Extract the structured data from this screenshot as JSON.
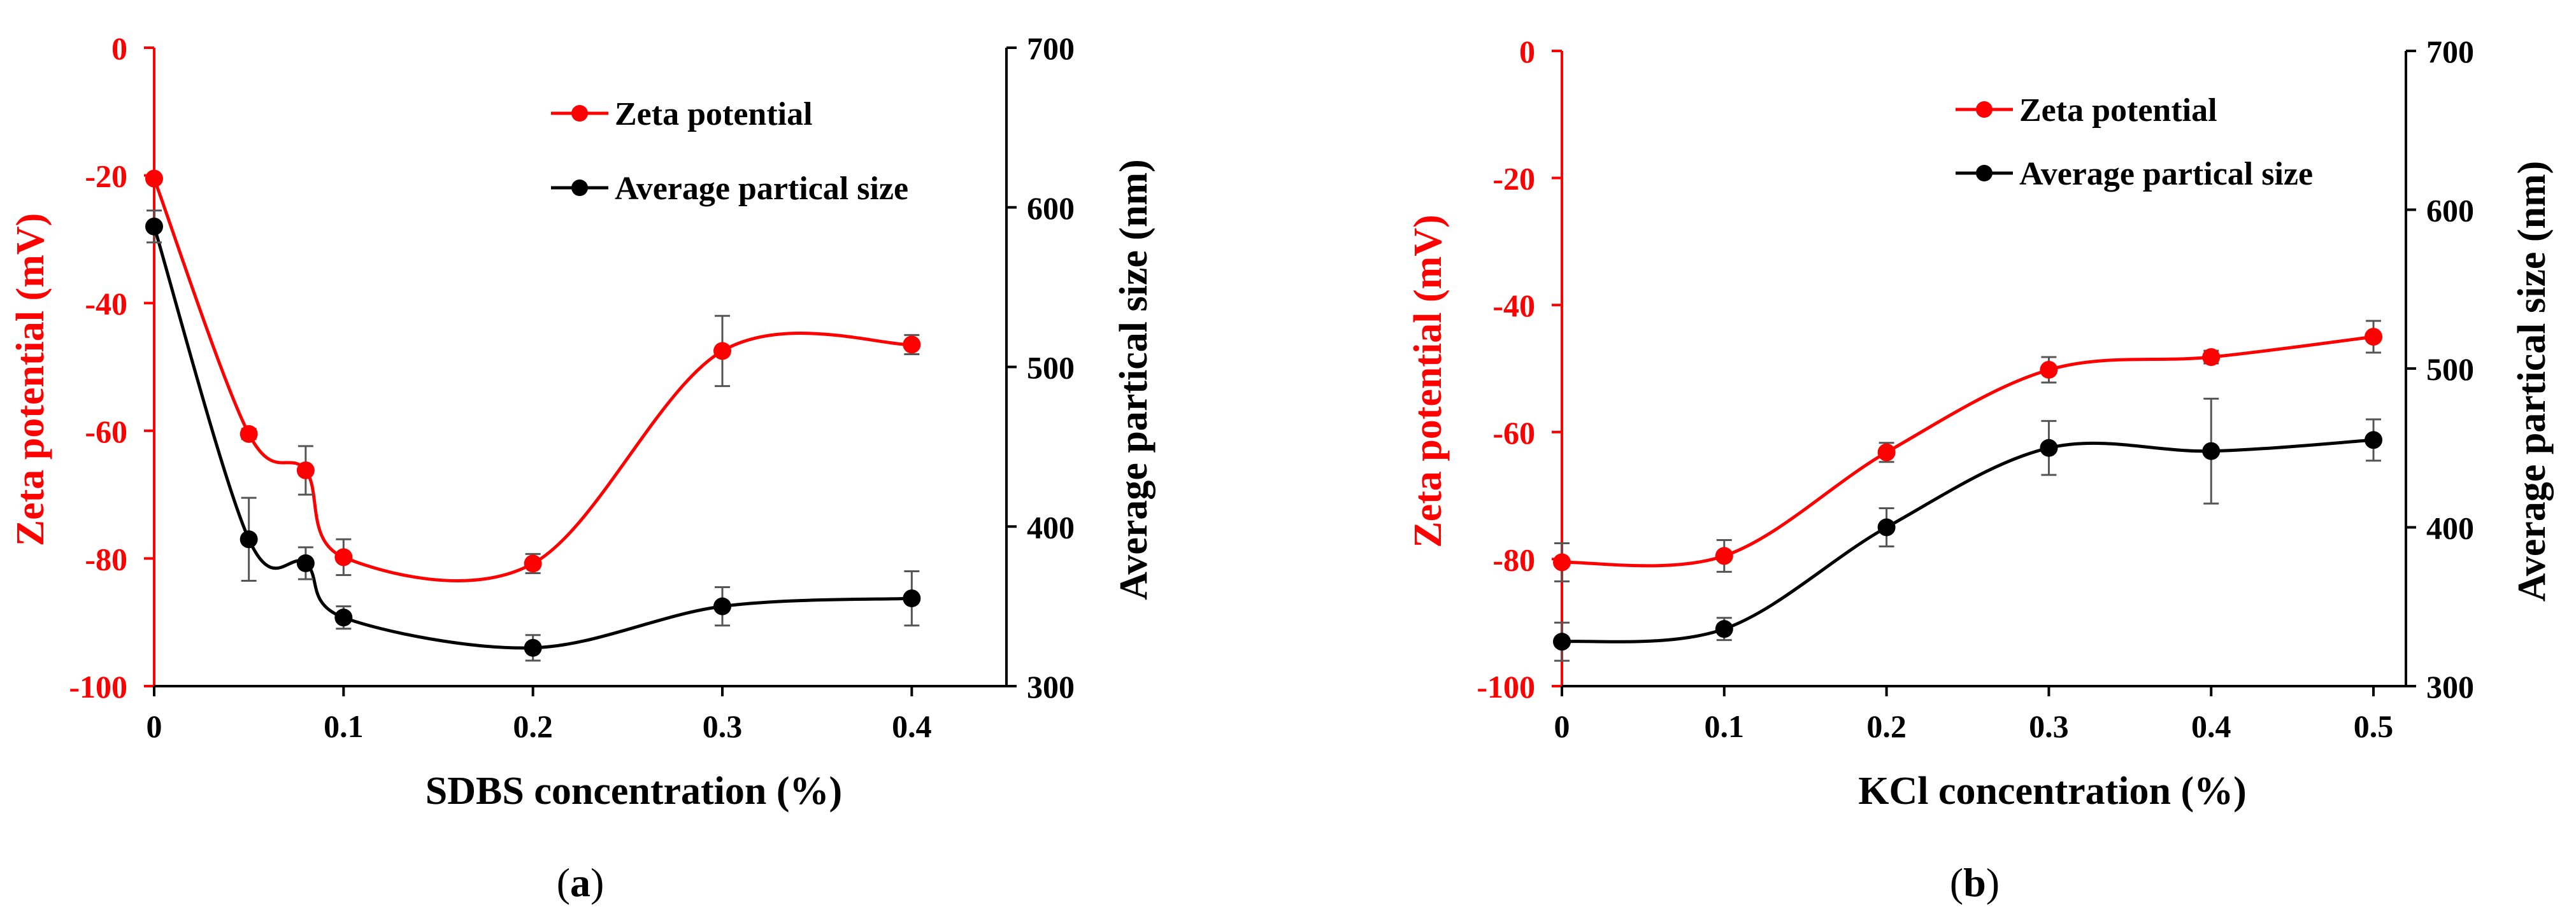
{
  "colors": {
    "zeta": "#ff0000",
    "size": "#000000",
    "axis": "#000000"
  },
  "chart_data": [
    {
      "id": "a",
      "type": "line",
      "panel_label": "(a)",
      "panel_letter": "a",
      "xlabel": "SDBS concentration (%)",
      "ylabel_left": "Zeta potential (mV)",
      "ylabel_right": "Average partical size (nm)",
      "xlim": [
        0,
        0.45
      ],
      "ylim_left": [
        -100,
        0
      ],
      "ylim_right": [
        300,
        700
      ],
      "x_ticks": [
        0,
        0.1,
        0.2,
        0.3,
        0.4
      ],
      "x_tick_labels": [
        "0",
        "0.1",
        "0.2",
        "0.3",
        "0.4"
      ],
      "y_ticks_left": [
        -100,
        -80,
        -60,
        -40,
        -20,
        0
      ],
      "y_tick_labels_left": [
        "-100",
        "-80",
        "-60",
        "-40",
        "-20",
        "0"
      ],
      "y_ticks_right": [
        300,
        400,
        500,
        600,
        700
      ],
      "y_tick_labels_right": [
        "300",
        "400",
        "500",
        "600",
        "700"
      ],
      "legend": [
        "Zeta potential",
        "Average partical size"
      ],
      "legend_position": "top-right",
      "grid": false,
      "series": [
        {
          "name": "Zeta potential",
          "axis": "left",
          "x": [
            0,
            0.05,
            0.08,
            0.1,
            0.2,
            0.3,
            0.4
          ],
          "values": [
            -20.5,
            -60.5,
            -66.2,
            -79.8,
            -80.8,
            -47.5,
            -46.5
          ],
          "errors": [
            0,
            0.8,
            3.8,
            2.8,
            1.5,
            5.5,
            1.5
          ]
        },
        {
          "name": "Average partical size",
          "axis": "right",
          "x": [
            0,
            0.05,
            0.08,
            0.1,
            0.2,
            0.3,
            0.4
          ],
          "values": [
            588,
            392,
            377,
            343,
            324,
            350,
            355
          ],
          "errors": [
            10,
            26,
            10,
            7,
            8,
            12,
            17
          ]
        }
      ]
    },
    {
      "id": "b",
      "type": "line",
      "panel_label": "(b)",
      "panel_letter": "b",
      "xlabel": "KCl concentration (%)",
      "ylabel_left": "Zeta potential (mV)",
      "ylabel_right": "Average partical size (nm)",
      "xlim": [
        0,
        0.52
      ],
      "ylim_left": [
        -100,
        0
      ],
      "ylim_right": [
        300,
        700
      ],
      "x_ticks": [
        0,
        0.1,
        0.2,
        0.3,
        0.4,
        0.5
      ],
      "x_tick_labels": [
        "0",
        "0.1",
        "0.2",
        "0.3",
        "0.4",
        "0.5"
      ],
      "y_ticks_left": [
        -100,
        -80,
        -60,
        -40,
        -20,
        0
      ],
      "y_tick_labels_left": [
        "-100",
        "-80",
        "-60",
        "-40",
        "-20",
        "0"
      ],
      "y_ticks_right": [
        300,
        400,
        500,
        600,
        700
      ],
      "y_tick_labels_right": [
        "300",
        "400",
        "500",
        "600",
        "700"
      ],
      "legend": [
        "Zeta potential",
        "Average partical size"
      ],
      "legend_position": "top-right",
      "grid": false,
      "series": [
        {
          "name": "Zeta potential",
          "axis": "left",
          "x": [
            0,
            0.1,
            0.2,
            0.3,
            0.4,
            0.5
          ],
          "values": [
            -80.5,
            -79.5,
            -63.2,
            -50.2,
            -48.2,
            -45.0
          ],
          "errors": [
            3,
            2.5,
            1.5,
            2.0,
            1.0,
            2.5
          ]
        },
        {
          "name": "Average partical size",
          "axis": "right",
          "x": [
            0,
            0.1,
            0.2,
            0.3,
            0.4,
            0.5
          ],
          "values": [
            328,
            336,
            400,
            450,
            448,
            455
          ],
          "errors": [
            12,
            7,
            12,
            17,
            33,
            13
          ]
        }
      ]
    }
  ]
}
